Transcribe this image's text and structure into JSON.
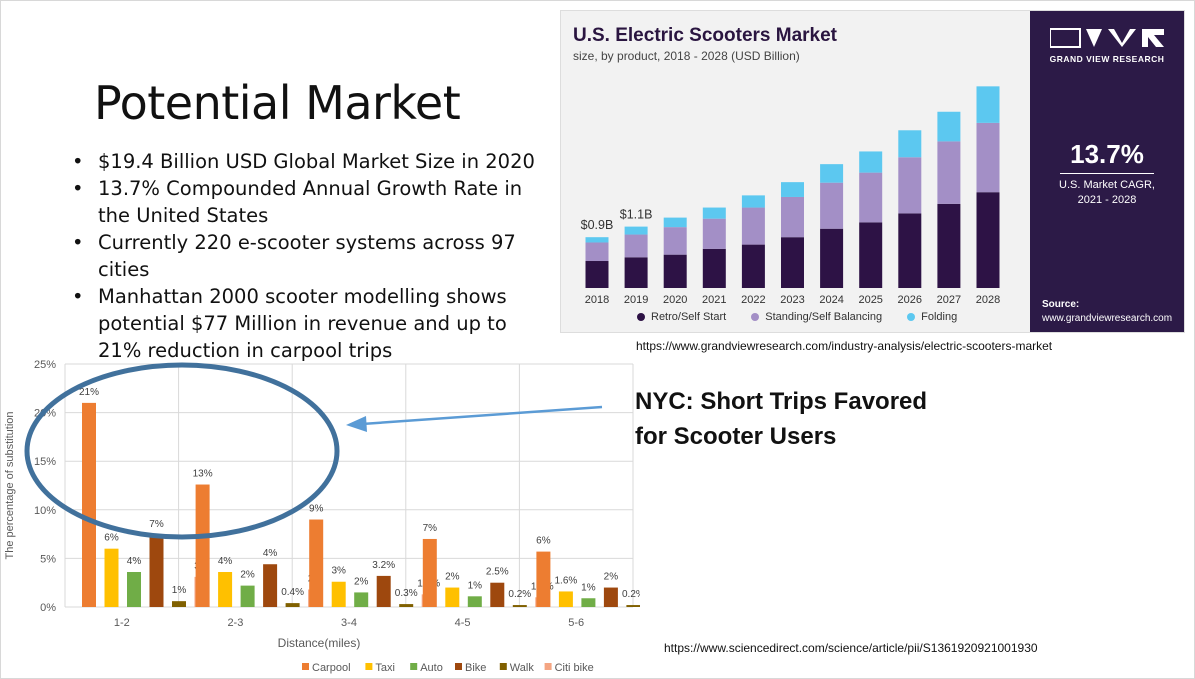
{
  "slide": {
    "title": "Potential Market",
    "bullets": [
      "$19.4 Billion USD Global Market Size in 2020",
      "13.7% Compounded Annual Growth Rate in the United States",
      "Currently 220 e-scooter systems across 97 cities",
      "Manhattan 2000 scooter modelling shows potential $77 Million in revenue and up to 21% reduction in carpool trips"
    ],
    "callout_line1": "NYC: Short Trips Favored",
    "callout_line2": "for Scooter Users",
    "link_top": "https://www.grandviewresearch.com/industry-analysis/electric-scooters-market",
    "link_bottom": "https://www.sciencedirect.com/science/article/pii/S1361920921001930"
  },
  "gvr_panel": {
    "logo_text": "GRAND VIEW RESEARCH",
    "cagr_value": "13.7%",
    "cagr_label_1": "U.S. Market CAGR,",
    "cagr_label_2": "2021 - 2028",
    "source_label": "Source:",
    "source_url": "www.grandviewresearch.com"
  },
  "colors": {
    "retro": "#2d1245",
    "standing": "#a38fc6",
    "folding": "#5cc8f0",
    "carpool": "#ed7d31",
    "taxi": "#ffc000",
    "auto": "#70ad47",
    "bike": "#9e480e",
    "walk": "#806000",
    "citibike": "#f4a582",
    "ellipse": "#41719c",
    "arrow": "#5b9bd5"
  },
  "chart_data": [
    {
      "type": "bar",
      "stacked": true,
      "title": "U.S. Electric Scooters Market",
      "subtitle": "size, by product, 2018 - 2028 (USD Billion)",
      "categories": [
        "2018",
        "2019",
        "2020",
        "2021",
        "2022",
        "2023",
        "2024",
        "2025",
        "2026",
        "2027",
        "2028"
      ],
      "series": [
        {
          "name": "Retro/Self Start",
          "values": [
            0.51,
            0.58,
            0.63,
            0.74,
            0.82,
            0.96,
            1.12,
            1.24,
            1.41,
            1.59,
            1.81
          ]
        },
        {
          "name": "Standing/Self Balancing",
          "values": [
            0.35,
            0.43,
            0.52,
            0.57,
            0.7,
            0.76,
            0.87,
            0.94,
            1.06,
            1.18,
            1.31
          ]
        },
        {
          "name": "Folding",
          "values": [
            0.1,
            0.15,
            0.18,
            0.21,
            0.23,
            0.28,
            0.35,
            0.4,
            0.51,
            0.56,
            0.69
          ]
        }
      ],
      "data_labels": [
        {
          "category": "2018",
          "text": "$0.9B"
        },
        {
          "category": "2019",
          "text": "$1.1B"
        }
      ],
      "ylim": [
        0,
        4.1
      ],
      "grid": false,
      "legend": "bottom"
    },
    {
      "type": "bar",
      "grouped": true,
      "xlabel": "Distance(miles)",
      "ylabel": "The percentage of substitution",
      "categories": [
        "1-2",
        "2-3",
        "3-4",
        "4-5",
        "5-6"
      ],
      "yticks": [
        "0%",
        "5%",
        "10%",
        "15%",
        "20%",
        "25%"
      ],
      "ylim": [
        0,
        25
      ],
      "grid": true,
      "legend": "bottom",
      "series": [
        {
          "name": "Carpool",
          "values": [
            21,
            12.6,
            9,
            7,
            5.7
          ],
          "labels": [
            "21%",
            "13%",
            "9%",
            "7%",
            "6%"
          ]
        },
        {
          "name": "Taxi",
          "values": [
            6,
            3.6,
            2.6,
            2,
            1.6
          ],
          "labels": [
            "6%",
            "4%",
            "3%",
            "2%",
            "1.6%"
          ]
        },
        {
          "name": "Auto",
          "values": [
            3.6,
            2.2,
            1.5,
            1.1,
            0.9
          ],
          "labels": [
            "4%",
            "2%",
            "2%",
            "1%",
            "1%"
          ]
        },
        {
          "name": "Bike",
          "values": [
            7.4,
            4.4,
            3.2,
            2.5,
            2
          ],
          "labels": [
            "7%",
            "4%",
            "3.2%",
            "2.5%",
            "2%"
          ]
        },
        {
          "name": "Walk",
          "values": [
            0.6,
            0.4,
            0.3,
            0.2,
            0.2
          ],
          "labels": [
            "1%",
            "0.4%",
            "0.3%",
            "0.2%",
            "0.2%"
          ]
        },
        {
          "name": "Citi bike",
          "values": [
            3.1,
            1.8,
            1.3,
            1,
            0.8
          ],
          "labels": [
            "3%",
            "2%",
            "1.3%",
            "1.0%",
            "0.8%"
          ]
        }
      ]
    }
  ]
}
